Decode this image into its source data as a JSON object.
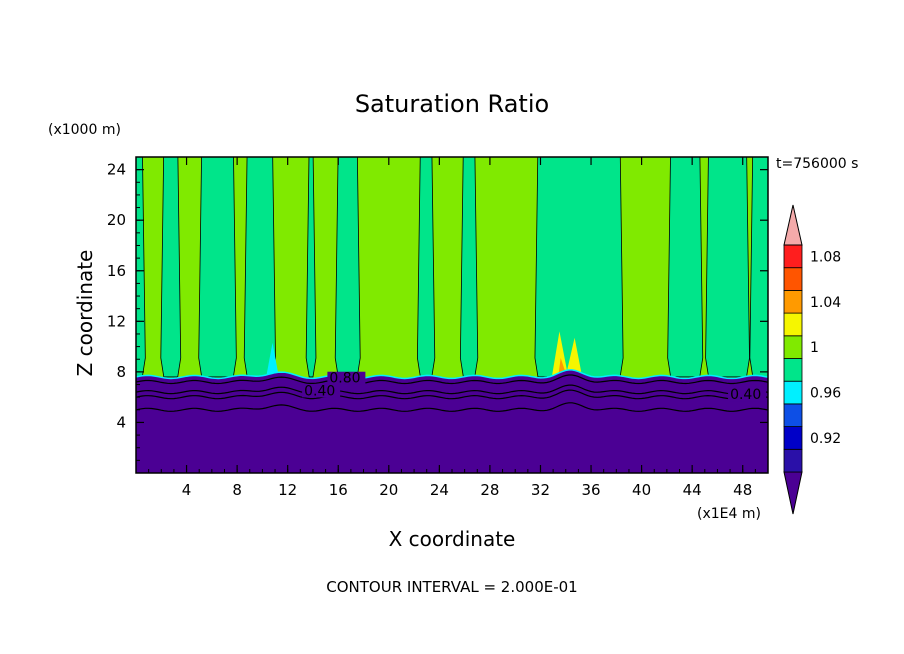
{
  "chart_data": {
    "type": "heatmap",
    "title": "Saturation Ratio",
    "xlabel": "X coordinate",
    "ylabel": "Z coordinate",
    "x_unit": "(x1E4 m)",
    "y_unit": "(x1000 m)",
    "time_label": "t=756000 s",
    "contour_interval_label": "CONTOUR INTERVAL = 2.000E-01",
    "xlim": [
      0,
      50
    ],
    "ylim": [
      0,
      25
    ],
    "x_ticks": [
      4,
      8,
      12,
      16,
      20,
      24,
      28,
      32,
      36,
      40,
      44,
      48
    ],
    "y_ticks": [
      4,
      8,
      12,
      16,
      20,
      24
    ],
    "colorbar": {
      "levels": [
        0.9,
        0.92,
        0.94,
        0.96,
        0.98,
        1.0,
        1.02,
        1.04,
        1.06,
        1.08,
        1.1
      ],
      "tick_labels": [
        "0.92",
        "0.96",
        "1",
        "1.04",
        "1.08"
      ],
      "tick_values": [
        0.92,
        0.96,
        1.0,
        1.04,
        1.08
      ],
      "colors": [
        "#4b0094",
        "#2a10a8",
        "#0000c8",
        "#0d4fe6",
        "#00f0ff",
        "#00e58a",
        "#80ea00",
        "#f6f600",
        "#ff9a00",
        "#ff5500",
        "#ff1e1e",
        "#f4aaaa"
      ]
    },
    "contour_labels": [
      {
        "text": "0.80",
        "x": 15.3,
        "z": 7.3
      },
      {
        "text": "0.40",
        "x": 13.3,
        "z": 6.3
      },
      {
        "text": "0.40",
        "x": 47.0,
        "z": 6.0
      }
    ],
    "fields": {
      "boundary_layer_top_z": 7.6,
      "lower_contours_z": [
        7.2,
        6.4,
        6.0,
        5.0
      ],
      "moist_columns": [
        [
          0,
          0.5
        ],
        [
          2.2,
          3.3
        ],
        [
          5.2,
          7.7
        ],
        [
          8.8,
          10.8
        ],
        [
          13.7,
          14.0
        ],
        [
          16.0,
          17.5
        ],
        [
          22.5,
          23.4
        ],
        [
          25.9,
          26.8
        ],
        [
          31.8,
          38.3
        ],
        [
          42.3,
          44.6
        ],
        [
          45.3,
          48.3
        ],
        [
          48.8,
          50.0
        ]
      ],
      "subsaturated_spots": [
        {
          "x": 10.8,
          "zmin": 7.6,
          "zmax": 10.3
        },
        {
          "x": 34.1,
          "zmin": 7.6,
          "zmax": 11.2
        }
      ]
    }
  }
}
